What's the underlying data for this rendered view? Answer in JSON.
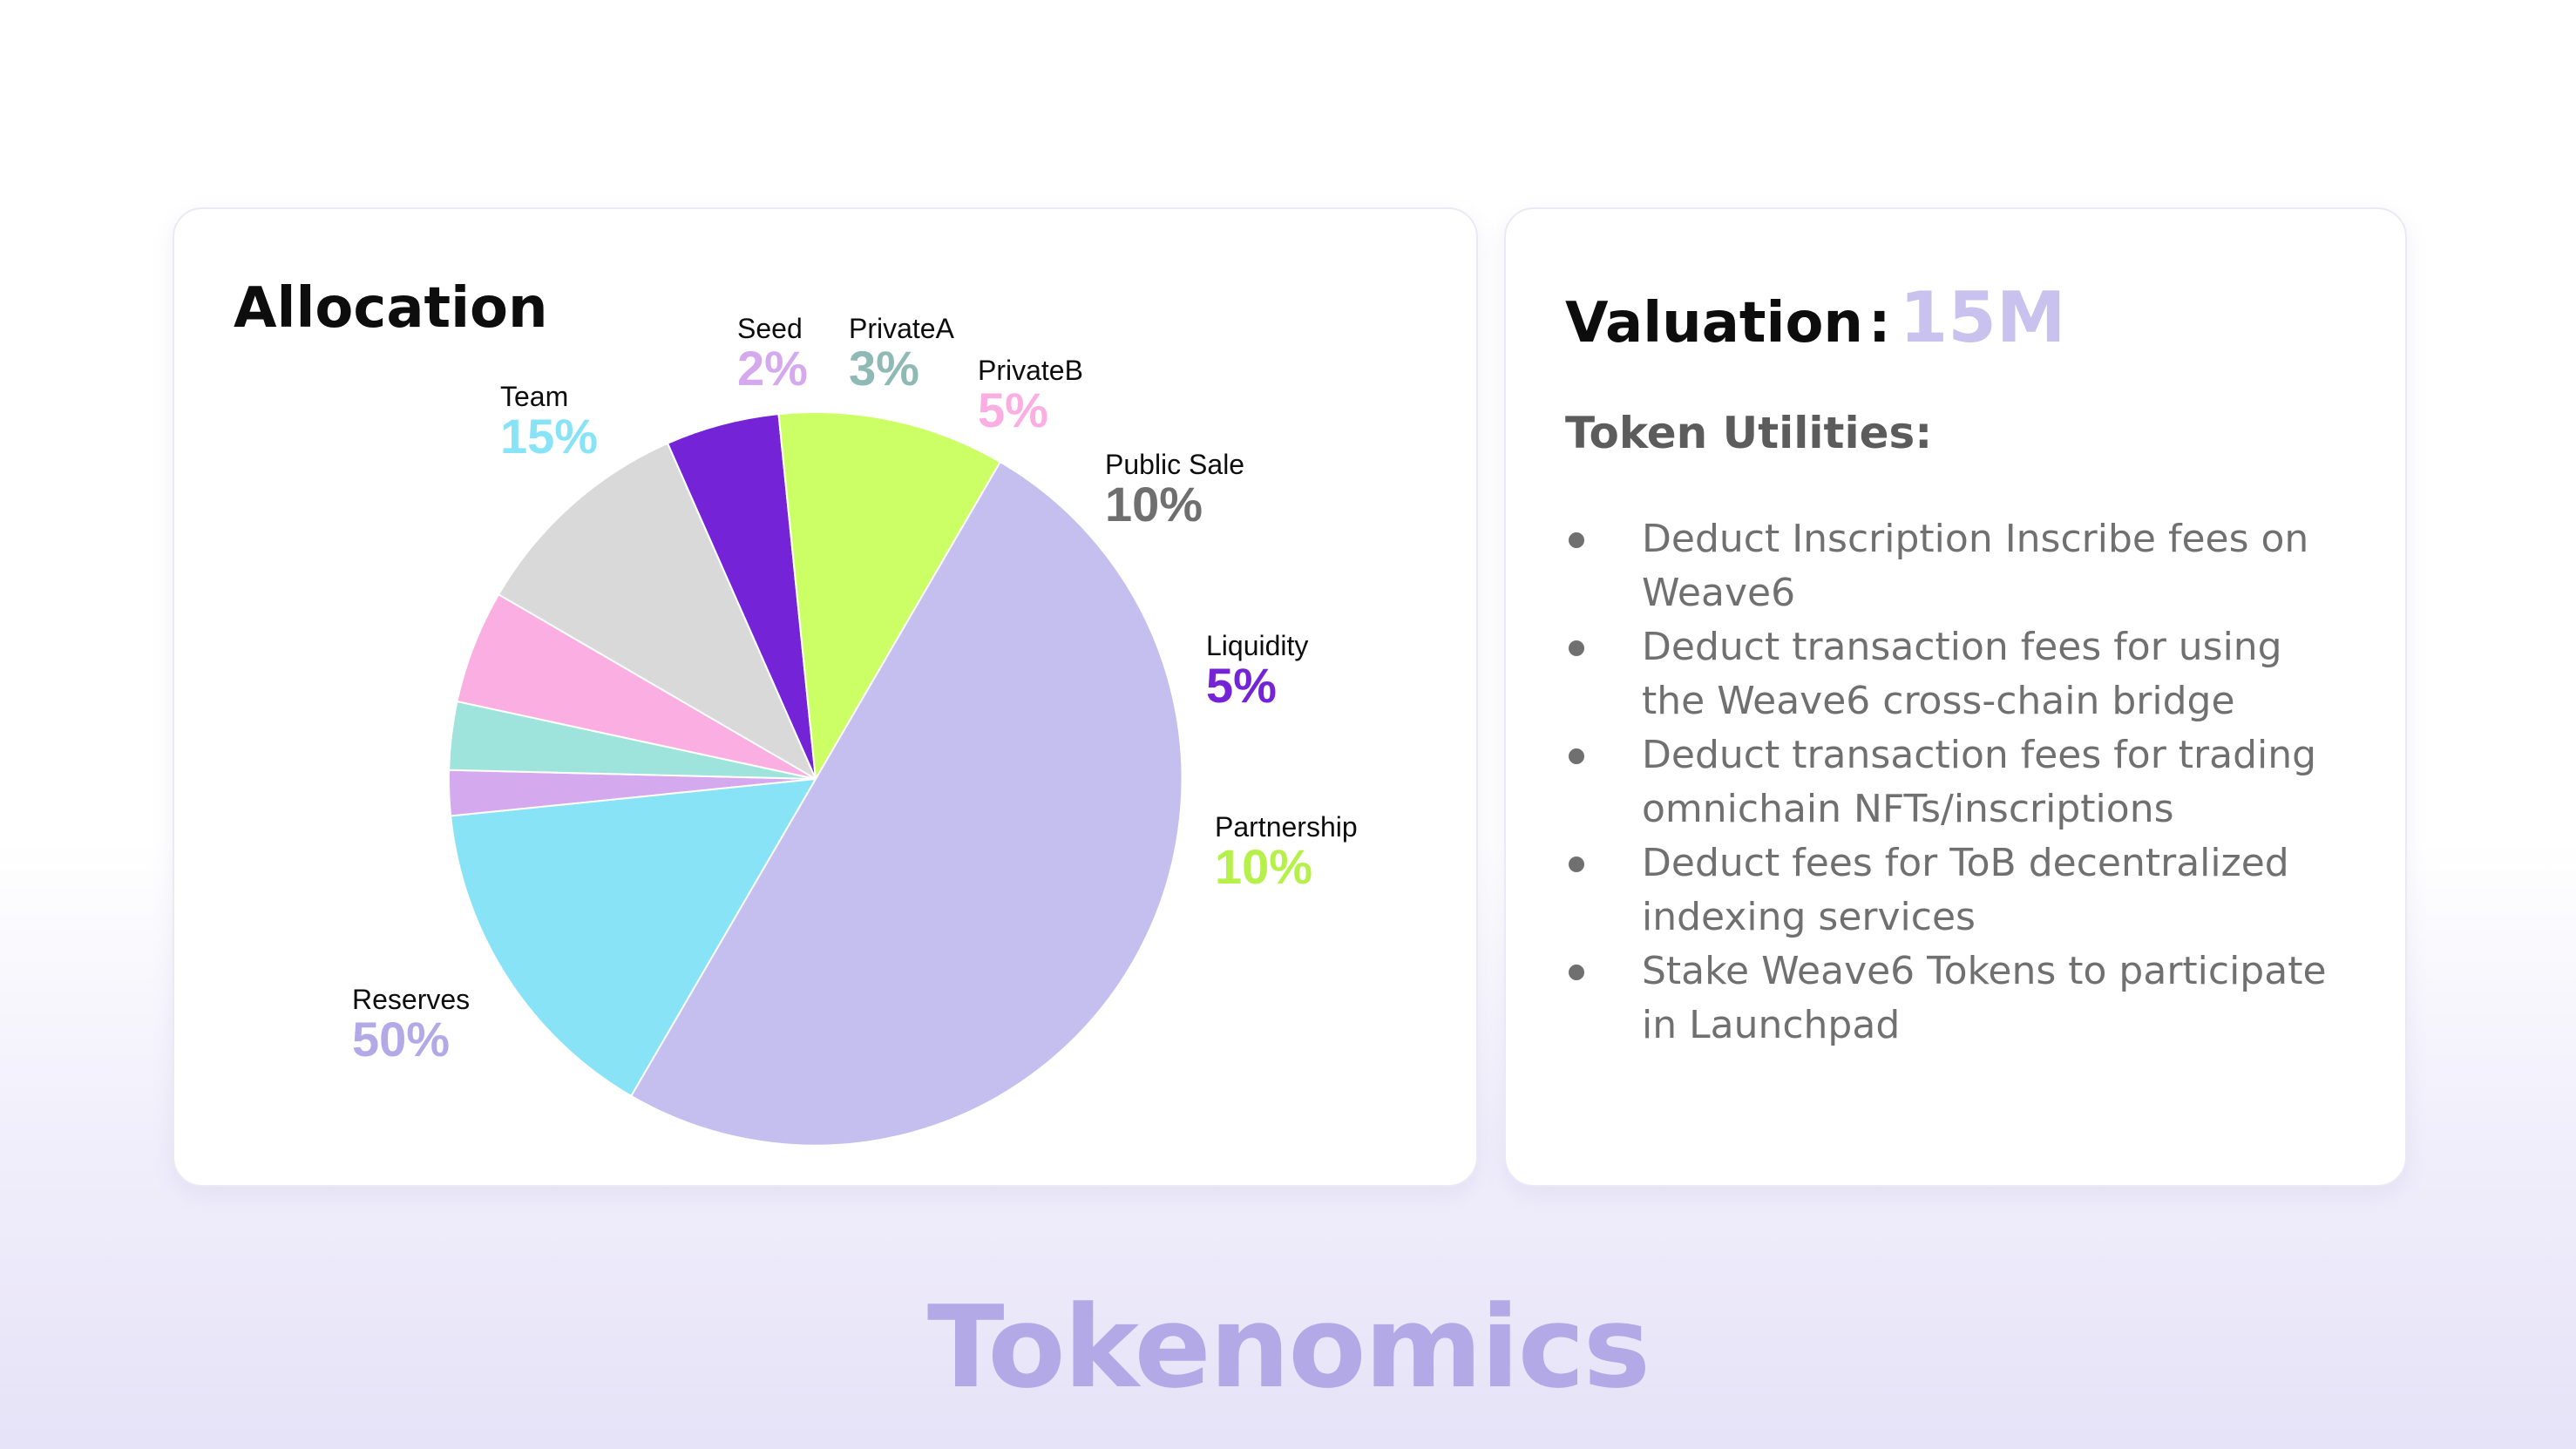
{
  "chart_data": {
    "type": "pie",
    "title": "Allocation",
    "categories": [
      "Seed",
      "PrivateA",
      "PrivateB",
      "Public Sale",
      "Liquidity",
      "Partnership",
      "Reserves",
      "Team"
    ],
    "values": [
      2,
      3,
      5,
      10,
      5,
      10,
      50,
      15
    ],
    "percent_labels": [
      "2%",
      "3%",
      "5%",
      "10%",
      "5%",
      "10%",
      "50%",
      "15%"
    ],
    "colors": [
      "#d5a9ee",
      "#9ee4dc",
      "#fbaee2",
      "#d9d9d9",
      "#7424d6",
      "#ccff66",
      "#c4bfee",
      "#88e3f6"
    ],
    "label_colors": [
      "#d5a9ee",
      "#8fb9b4",
      "#fbaee2",
      "#6f6f6f",
      "#7424d6",
      "#b6f04a",
      "#b3a9e6",
      "#88e3f6"
    ]
  },
  "valuation": {
    "label": "Valuation",
    "colon": ":",
    "value": "15M"
  },
  "utilities": {
    "heading": "Token Utilities:",
    "items": [
      "Deduct Inscription Inscribe fees on Weave6",
      "Deduct transaction fees for using the Weave6 cross-chain bridge",
      "Deduct transaction fees for trading omnichain NFTs/inscriptions",
      "Deduct fees for ToB decentralized indexing services",
      "Stake Weave6 Tokens to participate in Launchpad"
    ]
  },
  "footer": {
    "title": "Tokenomics"
  }
}
